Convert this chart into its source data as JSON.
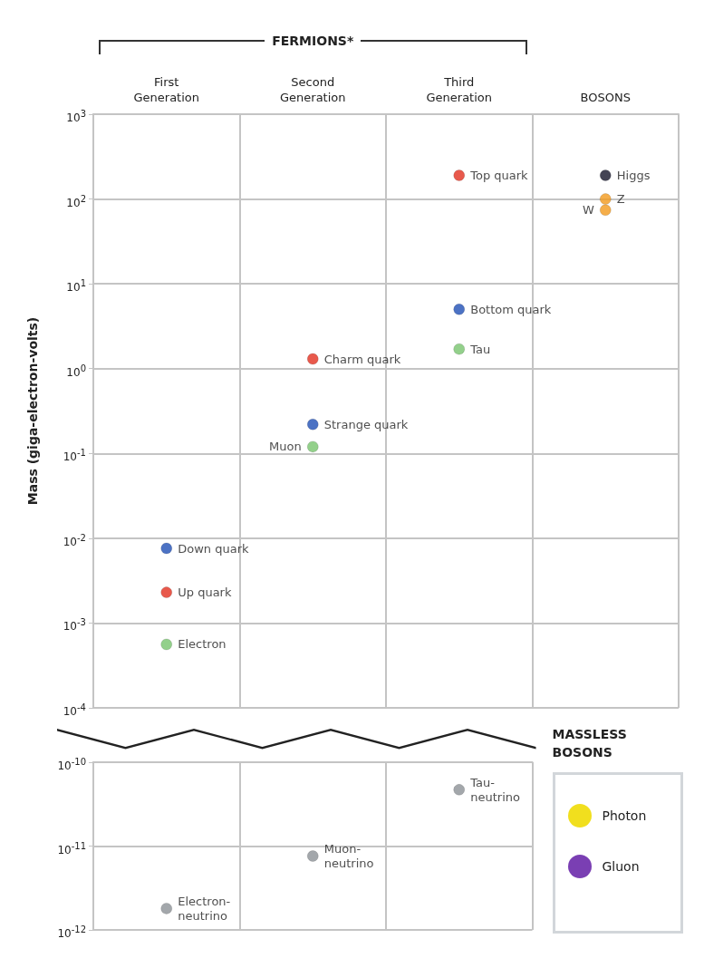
{
  "chart_data": [
    {
      "type": "scatter",
      "ylabel": "Mass (giga-electron-volts)",
      "categories": [
        "First Generation",
        "Second Generation",
        "Third Generation",
        "BOSONS"
      ],
      "series": [
        {
          "color": "#e2301f",
          "values": [
            0.0023,
            1.3,
            190,
            null
          ]
        },
        {
          "color": "#1f4fb5",
          "values": [
            0.0076,
            0.22,
            5,
            null
          ]
        },
        {
          "color": "#78c46e",
          "values": [
            0.00056,
            0.12,
            1.7,
            null
          ]
        },
        {
          "color": "#f39a1d",
          "values": [
            null,
            null,
            null,
            74
          ]
        },
        {
          "color": "#f39a1d",
          "values": [
            null,
            null,
            null,
            100
          ]
        },
        {
          "color": "#15152a",
          "values": [
            null,
            null,
            null,
            190
          ]
        }
      ],
      "annotations": [
        "FERMIONS*",
        {
          "text": "Top quark",
          "x": "Third Generation",
          "y": 190
        },
        {
          "text": "Charm quark",
          "x": "Second Generation",
          "y": 1.3
        },
        {
          "text": "Up quark",
          "x": "First Generation",
          "y": 0.0023
        },
        {
          "text": "Bottom quark",
          "x": "Third Generation",
          "y": 5
        },
        {
          "text": "Strange quark",
          "x": "Second Generation",
          "y": 0.22
        },
        {
          "text": "Down quark",
          "x": "First Generation",
          "y": 0.0076
        },
        {
          "text": "Tau",
          "x": "Third Generation",
          "y": 1.7
        },
        {
          "text": "Muon",
          "x": "Second Generation",
          "y": 0.12
        },
        {
          "text": "Electron",
          "x": "First Generation",
          "y": 0.00056
        },
        {
          "text": "W",
          "x": "BOSONS",
          "y": 74
        },
        {
          "text": "Z",
          "x": "BOSONS",
          "y": 100
        },
        {
          "text": "Higgs",
          "x": "BOSONS",
          "y": 190
        }
      ],
      "log": true,
      "ylim": [
        0.0001,
        1000
      ],
      "yticks": [
        {
          "value": 0.0001,
          "label": "10$^{-4}$"
        },
        {
          "value": 0.001,
          "label": "10$^{-3}$"
        },
        {
          "value": 0.01,
          "label": "10$^{-2}$"
        },
        {
          "value": 0.1,
          "label": "10$^{-1}$"
        },
        {
          "value": 1,
          "label": "10$^{0}$"
        },
        {
          "value": 10,
          "label": "10$^{1}$"
        },
        {
          "value": 100,
          "label": "10$^{2}$"
        },
        {
          "value": 1000,
          "label": "10$^{3}$"
        }
      ],
      "grid": true,
      "marker": "circle"
    },
    {
      "type": "scatter",
      "categories": [
        "First Generation",
        "Second Generation",
        "Third Generation"
      ],
      "series": [
        {
          "color": "#8c9196",
          "values": [
            1.8e-12,
            7.6e-12,
            4.7e-11
          ]
        }
      ],
      "annotations": [
        {
          "text": "Electron-neutrino",
          "x": "First Generation",
          "y": 1.8e-12
        },
        {
          "text": "Muon-neutrino",
          "x": "Second Generation",
          "y": 7.6e-12
        },
        {
          "text": "Tau-neutrino",
          "x": "Third Generation",
          "y": 4.7e-11
        }
      ],
      "log": true,
      "ylim": [
        1e-12,
        1e-10
      ],
      "yticks": [
        {
          "value": 1e-12,
          "label": "10$^{-12}$"
        },
        {
          "value": 1e-11,
          "label": "10$^{-11}$"
        },
        {
          "value": 1e-10,
          "label": "10$^{-10}$"
        }
      ],
      "tick_labels": "y",
      "grid": true,
      "marker": "circle"
    },
    {
      "type": "other",
      "title": "MASSLESS BOSONS",
      "categories": [
        "Photon",
        "Gluon"
      ],
      "colors": [
        "#f1df1e",
        "#7a3fb3"
      ]
    }
  ]
}
